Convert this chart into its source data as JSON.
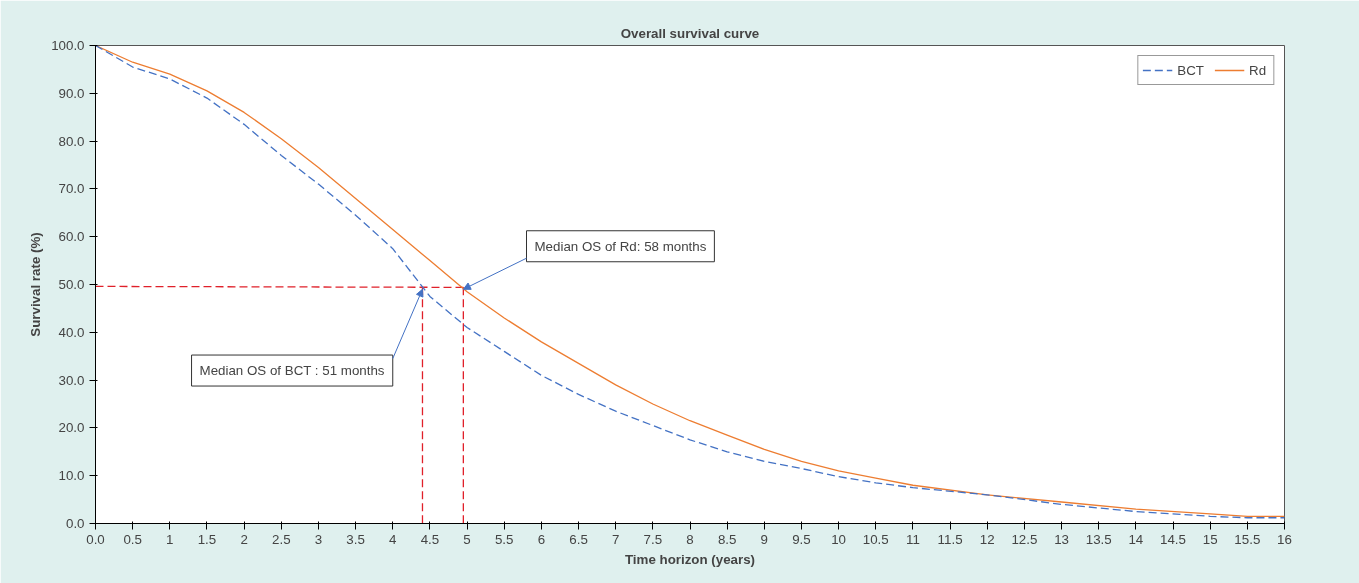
{
  "chart_data": {
    "type": "line",
    "title": "Overall survival curve",
    "xlabel": "Time horizon (years)",
    "ylabel": "Survival rate (%)",
    "xlim": [
      0,
      16
    ],
    "ylim": [
      0,
      100
    ],
    "xticks": [
      {
        "value": 0,
        "label": "0.0"
      },
      0.5,
      1,
      1.5,
      2,
      2.5,
      3,
      3.5,
      4,
      4.5,
      5,
      5.5,
      6,
      6.5,
      7,
      7.5,
      8,
      8.5,
      9,
      9.5,
      10,
      10.5,
      11,
      11.5,
      12,
      12.5,
      13,
      13.5,
      14,
      14.5,
      15,
      15.5,
      16
    ],
    "yticks": [
      {
        "value": 0,
        "label": "0.0"
      },
      {
        "value": 10,
        "label": "10.0"
      },
      {
        "value": 20,
        "label": "20.0"
      },
      {
        "value": 30,
        "label": "30.0"
      },
      {
        "value": 40,
        "label": "40.0"
      },
      {
        "value": 50,
        "label": "50.0"
      },
      {
        "value": 60,
        "label": "60.0"
      },
      {
        "value": 70,
        "label": "70.0"
      },
      {
        "value": 80,
        "label": "80.0"
      },
      {
        "value": 90,
        "label": "90.0"
      },
      {
        "value": 100,
        "label": "100.0"
      }
    ],
    "grid": false,
    "legend": "top right",
    "x": [
      0,
      0.5,
      1,
      1.5,
      2,
      2.5,
      3,
      3.5,
      4,
      4.5,
      5,
      5.5,
      6,
      6.5,
      7,
      7.5,
      8,
      8.5,
      9,
      9.5,
      10,
      10.5,
      11,
      12,
      13,
      14,
      15,
      15.5,
      16
    ],
    "series": [
      {
        "name": "BCT",
        "color": "#4472c4",
        "line_style": "dashed",
        "values": [
          100,
          95.5,
          93,
          89,
          83.5,
          77,
          71,
          64.5,
          57.5,
          47.5,
          41,
          36,
          31,
          27,
          23.5,
          20.5,
          17.5,
          15,
          13,
          11.5,
          9.8,
          8.5,
          7.5,
          6,
          4,
          2.5,
          1.5,
          1.2,
          1.2
        ]
      },
      {
        "name": "Rd",
        "color": "#ed7d31",
        "line_style": "solid",
        "values": [
          100,
          96.5,
          94,
          90.5,
          86,
          80.5,
          74.5,
          68,
          61.5,
          55,
          48.5,
          43,
          38,
          33.5,
          29,
          25,
          21.5,
          18.5,
          15.5,
          13,
          11,
          9.5,
          8,
          6,
          4.5,
          3,
          2,
          1.5,
          1.5
        ]
      },
      {
        "color": "#e0202a",
        "line_style": "dashed",
        "x": [
          0,
          4.95
        ],
        "values": [
          49.6,
          49.4
        ]
      },
      {
        "color": "#e0202a",
        "line_style": "dashed",
        "x": [
          4.4,
          4.4
        ],
        "values": [
          49.4,
          0
        ]
      },
      {
        "color": "#e0202a",
        "line_style": "dashed",
        "x": [
          4.95,
          4.95
        ],
        "values": [
          49.4,
          0
        ]
      }
    ],
    "annotations": [
      {
        "text": "Median OS of Rd: 58 months",
        "x": 4.95,
        "y": 49
      },
      {
        "text": "Median OS of BCT : 51 months",
        "x": 4.4,
        "y": 49
      }
    ]
  }
}
